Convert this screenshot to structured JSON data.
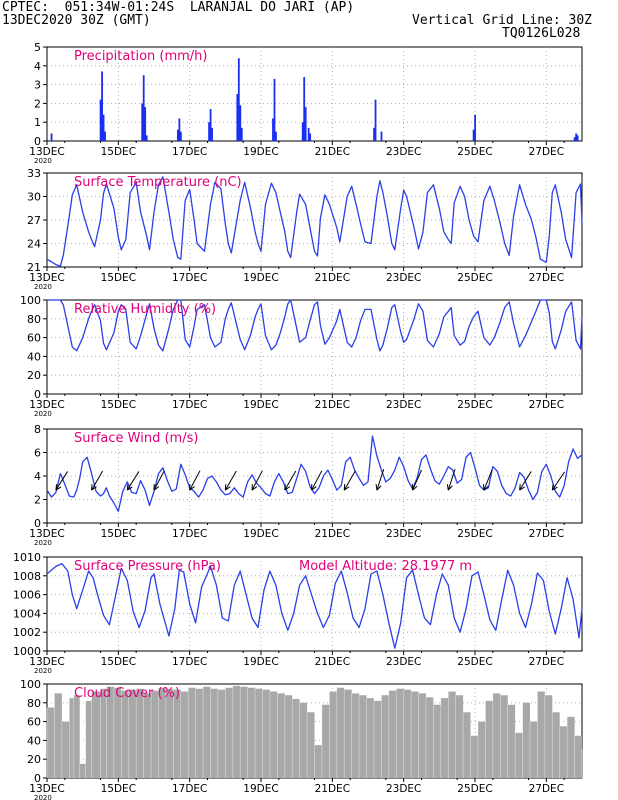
{
  "header": {
    "line1": "CPTEC:  051:34W-01:24S  LARANJAL DO JARI (AP)",
    "line2_left": "13DEC2020 30Z (GMT)",
    "line2_right": "Vertical Grid Line: 30Z",
    "line3_right": "TQ0126L028"
  },
  "colors": {
    "header": "#f07800",
    "title": "#e0007a",
    "line": "#2a3fe8",
    "bar": "#1a2ff0",
    "cloud": "#a8a8a8",
    "arrow": "#000000",
    "grid": "#a0a0a0"
  },
  "x_axis": {
    "range_hours": [
      0,
      360
    ],
    "tick_labels": [
      "13DEC",
      "15DEC",
      "17DEC",
      "19DEC",
      "21DEC",
      "23DEC",
      "25DEC",
      "27DEC"
    ],
    "year_label": "2020"
  },
  "chart_data": [
    {
      "id": "precipitation",
      "type": "bar",
      "title": "Precipitation (mm/h)",
      "ylim": [
        0,
        5
      ],
      "yticks": [
        0,
        1,
        2,
        3,
        4,
        5
      ],
      "x_hours": [
        3,
        36,
        37,
        38,
        39,
        64,
        65,
        66,
        67,
        88,
        89,
        90,
        109,
        110,
        111,
        128,
        129,
        130,
        131,
        152,
        153,
        154,
        172,
        173,
        174,
        176,
        177,
        220,
        221,
        225,
        287,
        288,
        355,
        356,
        357
      ],
      "values": [
        0.4,
        2.2,
        3.7,
        1.4,
        0.5,
        2.0,
        3.5,
        1.8,
        0.3,
        0.6,
        1.2,
        0.5,
        1.0,
        1.7,
        0.7,
        2.5,
        4.4,
        1.9,
        0.7,
        1.2,
        3.3,
        0.5,
        1.0,
        3.4,
        1.8,
        0.7,
        0.4,
        0.7,
        2.2,
        0.5,
        0.6,
        1.4,
        0.2,
        0.4,
        0.3
      ]
    },
    {
      "id": "temperature",
      "type": "line",
      "title": "Surface Temperature (nC)",
      "ylim": [
        21,
        33
      ],
      "yticks": [
        21,
        24,
        27,
        30,
        33
      ],
      "x_hours": [
        0,
        6,
        9,
        11,
        15,
        17,
        20,
        24,
        28,
        30,
        32,
        36,
        38,
        40,
        45,
        48,
        50,
        53,
        56,
        60,
        63,
        67,
        69,
        72,
        75,
        78,
        82,
        85,
        88,
        90,
        93,
        96,
        99,
        101,
        106,
        110,
        113,
        117,
        120,
        122,
        124,
        130,
        133,
        137,
        140,
        142,
        144,
        147,
        151,
        154,
        157,
        160,
        162,
        164,
        168,
        170,
        174,
        177,
        180,
        182,
        184,
        187,
        190,
        195,
        197,
        202,
        205,
        208,
        211,
        214,
        218,
        222,
        224,
        226,
        229,
        232,
        234,
        238,
        240,
        242,
        247,
        250,
        253,
        256,
        260,
        264,
        267,
        270,
        272,
        274,
        278,
        281,
        284,
        287,
        290,
        294,
        298,
        301,
        305,
        308,
        311,
        314,
        318,
        322,
        326,
        329,
        332,
        336,
        338,
        340,
        342,
        346,
        349,
        353,
        356,
        359,
        360
      ],
      "values": [
        22.0,
        21.3,
        21.1,
        22.5,
        27.5,
        30.2,
        31.5,
        28.0,
        25.5,
        24.5,
        23.6,
        27.0,
        30.4,
        31.6,
        28.5,
        24.8,
        23.2,
        24.5,
        30.5,
        31.8,
        28.0,
        25.0,
        23.2,
        28.0,
        31.5,
        32.5,
        28.0,
        24.5,
        22.2,
        22.0,
        29.5,
        30.9,
        27.0,
        24.0,
        23.0,
        29.0,
        31.8,
        31.0,
        26.5,
        24.0,
        22.8,
        29.5,
        31.8,
        28.5,
        25.5,
        24.0,
        23.0,
        29.0,
        31.7,
        30.5,
        28.0,
        25.5,
        23.0,
        22.2,
        28.0,
        30.3,
        29.0,
        26.0,
        23.0,
        22.4,
        27.2,
        30.2,
        29.0,
        26.0,
        24.2,
        30.0,
        31.3,
        29.0,
        26.5,
        24.2,
        24.0,
        30.0,
        32.0,
        30.5,
        27.5,
        24.0,
        23.2,
        28.5,
        30.8,
        30.0,
        26.0,
        23.3,
        25.5,
        30.5,
        31.5,
        28.5,
        25.5,
        24.5,
        24.0,
        29.2,
        31.3,
        30.0,
        27.0,
        25.0,
        24.2,
        29.5,
        31.3,
        29.5,
        26.5,
        24.0,
        22.5,
        27.5,
        31.5,
        29.0,
        27.0,
        24.8,
        22.0,
        21.6,
        25.0,
        30.5,
        31.5,
        28.0,
        24.5,
        22.2,
        30.5,
        31.6,
        26.5
      ]
    },
    {
      "id": "humidity",
      "type": "line",
      "title": "Relative Humidity (%)",
      "ylim": [
        0,
        100
      ],
      "yticks": [
        0,
        20,
        40,
        60,
        80,
        100
      ],
      "x_hours": [
        0,
        6,
        9,
        11,
        15,
        17,
        20,
        24,
        28,
        30,
        32,
        36,
        38,
        40,
        45,
        48,
        50,
        53,
        56,
        60,
        63,
        67,
        69,
        72,
        75,
        78,
        82,
        85,
        88,
        90,
        93,
        96,
        99,
        101,
        106,
        110,
        113,
        117,
        120,
        122,
        124,
        130,
        133,
        137,
        140,
        142,
        144,
        147,
        151,
        154,
        157,
        160,
        162,
        164,
        168,
        170,
        174,
        177,
        180,
        182,
        184,
        187,
        190,
        195,
        197,
        202,
        205,
        208,
        211,
        214,
        218,
        222,
        224,
        226,
        229,
        232,
        234,
        238,
        240,
        242,
        247,
        250,
        253,
        256,
        260,
        264,
        267,
        270,
        272,
        274,
        278,
        281,
        284,
        287,
        290,
        294,
        298,
        301,
        305,
        308,
        311,
        314,
        318,
        322,
        326,
        329,
        332,
        336,
        338,
        340,
        342,
        346,
        349,
        353,
        356,
        359,
        360
      ],
      "values": [
        100,
        100,
        100,
        95,
        65,
        50,
        46,
        60,
        80,
        88,
        95,
        78,
        54,
        47,
        65,
        88,
        95,
        90,
        55,
        48,
        62,
        85,
        96,
        70,
        52,
        46,
        70,
        90,
        100,
        100,
        58,
        50,
        72,
        90,
        95,
        60,
        50,
        55,
        80,
        90,
        97,
        58,
        47,
        63,
        82,
        90,
        96,
        62,
        47,
        52,
        65,
        82,
        96,
        100,
        70,
        55,
        60,
        78,
        95,
        98,
        73,
        53,
        60,
        78,
        90,
        55,
        50,
        60,
        78,
        90,
        90,
        58,
        46,
        52,
        70,
        92,
        95,
        66,
        55,
        58,
        80,
        96,
        88,
        57,
        50,
        64,
        82,
        88,
        92,
        62,
        52,
        56,
        72,
        82,
        88,
        60,
        52,
        60,
        77,
        92,
        98,
        75,
        50,
        62,
        77,
        88,
        100,
        100,
        86,
        56,
        48,
        68,
        88,
        98,
        57,
        48,
        82
      ]
    },
    {
      "id": "wind",
      "type": "line",
      "title": "Surface Wind (m/s)",
      "ylim": [
        0,
        8
      ],
      "yticks": [
        0,
        2,
        4,
        6,
        8
      ],
      "x_hours": [
        0,
        3,
        6,
        9,
        12,
        15,
        18,
        20,
        22,
        24,
        27,
        30,
        33,
        36,
        38,
        40,
        42,
        45,
        48,
        51,
        54,
        57,
        60,
        63,
        66,
        69,
        72,
        75,
        78,
        81,
        84,
        87,
        90,
        93,
        96,
        99,
        102,
        105,
        108,
        111,
        114,
        117,
        120,
        123,
        126,
        129,
        132,
        135,
        138,
        141,
        144,
        147,
        150,
        153,
        156,
        159,
        162,
        165,
        168,
        171,
        174,
        177,
        180,
        183,
        186,
        189,
        192,
        195,
        198,
        201,
        204,
        207,
        210,
        213,
        216,
        219,
        222,
        225,
        228,
        231,
        234,
        237,
        240,
        243,
        246,
        249,
        252,
        255,
        258,
        261,
        264,
        267,
        270,
        273,
        276,
        279,
        282,
        285,
        288,
        291,
        294,
        297,
        300,
        303,
        306,
        309,
        312,
        315,
        318,
        321,
        324,
        327,
        330,
        333,
        336,
        339,
        342,
        345,
        348,
        351,
        354,
        357,
        360
      ],
      "values": [
        2.8,
        2.2,
        2.6,
        4.2,
        3.3,
        2.3,
        2.2,
        2.8,
        3.8,
        5.2,
        5.6,
        4.2,
        2.7,
        2.3,
        2.5,
        3.0,
        2.3,
        1.7,
        1.0,
        2.7,
        3.5,
        2.6,
        2.5,
        3.6,
        2.8,
        1.5,
        2.7,
        4.2,
        4.7,
        3.6,
        2.7,
        2.9,
        5.0,
        4.1,
        3.0,
        2.7,
        2.2,
        2.8,
        3.8,
        4.0,
        3.5,
        2.8,
        2.4,
        2.5,
        3.0,
        2.5,
        2.2,
        3.5,
        4.1,
        3.4,
        3.0,
        2.5,
        2.3,
        3.5,
        4.2,
        3.5,
        2.5,
        2.6,
        3.8,
        5.0,
        4.4,
        3.1,
        2.5,
        3.0,
        4.0,
        4.5,
        3.7,
        2.8,
        3.2,
        5.2,
        5.6,
        4.5,
        3.8,
        3.2,
        3.5,
        7.4,
        5.7,
        4.5,
        3.5,
        3.8,
        4.5,
        5.6,
        4.8,
        3.6,
        2.9,
        3.8,
        5.4,
        5.8,
        4.6,
        3.6,
        3.3,
        4.0,
        4.8,
        4.5,
        3.4,
        3.7,
        5.6,
        6.0,
        4.7,
        3.2,
        2.8,
        3.0,
        4.8,
        4.4,
        3.2,
        2.5,
        2.3,
        3.0,
        4.3,
        3.9,
        2.8,
        2.0,
        2.6,
        4.4,
        5.0,
        4.0,
        2.7,
        2.2,
        3.2,
        5.2,
        6.3,
        5.5,
        5.8
      ],
      "arrows": {
        "x_hours": [
          6,
          30,
          54,
          72,
          96,
          120,
          138,
          160,
          178,
          200,
          222,
          246,
          270,
          294,
          318,
          340
        ],
        "dir_deg": [
          58,
          60,
          58,
          62,
          62,
          60,
          62,
          60,
          62,
          60,
          72,
          66,
          72,
          68,
          58,
          56
        ]
      }
    },
    {
      "id": "pressure",
      "type": "line",
      "title": "Surface Pressure (hPa)",
      "subtitle": "Model Altitude: 28.1977 m",
      "ylim": [
        1000,
        1010
      ],
      "yticks": [
        1000,
        1002,
        1004,
        1006,
        1008,
        1010
      ],
      "x_hours": [
        0,
        6,
        10,
        14,
        17,
        20,
        24,
        28,
        31,
        34,
        38,
        42,
        46,
        50,
        54,
        58,
        62,
        66,
        70,
        72,
        76,
        82,
        86,
        89,
        92,
        96,
        100,
        104,
        110,
        114,
        118,
        122,
        126,
        130,
        134,
        138,
        142,
        146,
        150,
        154,
        158,
        162,
        166,
        170,
        174,
        178,
        182,
        186,
        190,
        194,
        198,
        202,
        206,
        210,
        214,
        218,
        222,
        226,
        230,
        234,
        238,
        242,
        246,
        250,
        254,
        258,
        262,
        266,
        270,
        274,
        278,
        282,
        286,
        290,
        294,
        298,
        302,
        306,
        310,
        314,
        318,
        322,
        326,
        330,
        334,
        338,
        342,
        346,
        350,
        354,
        358,
        360
      ],
      "values": [
        1008.2,
        1009.0,
        1009.3,
        1008.5,
        1006.0,
        1004.5,
        1006.5,
        1008.5,
        1007.8,
        1006.0,
        1003.8,
        1002.8,
        1005.8,
        1008.8,
        1007.5,
        1004.2,
        1002.5,
        1004.3,
        1007.8,
        1008.2,
        1005.0,
        1001.6,
        1004.5,
        1008.6,
        1008.4,
        1005.0,
        1003.0,
        1006.8,
        1009.0,
        1007.0,
        1003.5,
        1003.2,
        1007.0,
        1008.5,
        1006.0,
        1003.5,
        1002.5,
        1006.5,
        1008.5,
        1007.0,
        1004.0,
        1002.2,
        1004.0,
        1007.0,
        1008.0,
        1006.0,
        1004.0,
        1002.5,
        1003.8,
        1007.2,
        1008.5,
        1006.2,
        1003.5,
        1002.5,
        1004.5,
        1008.2,
        1008.5,
        1006.0,
        1003.0,
        1000.3,
        1003.0,
        1007.8,
        1008.6,
        1006.0,
        1003.5,
        1002.8,
        1006.0,
        1008.2,
        1007.0,
        1003.5,
        1002.0,
        1004.5,
        1008.0,
        1008.4,
        1006.0,
        1003.3,
        1002.2,
        1005.5,
        1008.6,
        1007.0,
        1004.0,
        1002.5,
        1005.0,
        1008.3,
        1007.5,
        1004.2,
        1001.8,
        1004.5,
        1007.8,
        1005.5,
        1001.4,
        1004.5
      ]
    },
    {
      "id": "cloud_cover",
      "type": "bar",
      "title": "Cloud Cover (%)",
      "ylim": [
        0,
        100
      ],
      "yticks": [
        0,
        20,
        40,
        60,
        80,
        100
      ],
      "x_hours": [
        0,
        5,
        10,
        15,
        18,
        22,
        26,
        30,
        36,
        40,
        45,
        50,
        55,
        60,
        65,
        70,
        75,
        80,
        85,
        90,
        95,
        100,
        105,
        110,
        115,
        120,
        125,
        130,
        135,
        140,
        145,
        150,
        155,
        160,
        165,
        170,
        175,
        180,
        185,
        190,
        195,
        200,
        205,
        210,
        215,
        220,
        225,
        230,
        235,
        240,
        245,
        250,
        255,
        260,
        265,
        270,
        275,
        280,
        285,
        290,
        295,
        300,
        305,
        310,
        315,
        320,
        325,
        330,
        335,
        340,
        345,
        350,
        355,
        360
      ],
      "values": [
        75,
        90,
        60,
        85,
        88,
        15,
        82,
        92,
        95,
        97,
        96,
        93,
        94,
        95,
        90,
        93,
        96,
        95,
        94,
        92,
        96,
        95,
        97,
        95,
        94,
        96,
        98,
        97,
        96,
        95,
        94,
        92,
        90,
        88,
        84,
        80,
        70,
        35,
        78,
        92,
        96,
        94,
        90,
        88,
        85,
        82,
        88,
        93,
        95,
        94,
        92,
        90,
        86,
        78,
        85,
        92,
        88,
        70,
        45,
        60,
        82,
        90,
        88,
        78,
        48,
        80,
        60,
        92,
        88,
        70,
        55,
        65,
        45,
        30
      ]
    }
  ]
}
